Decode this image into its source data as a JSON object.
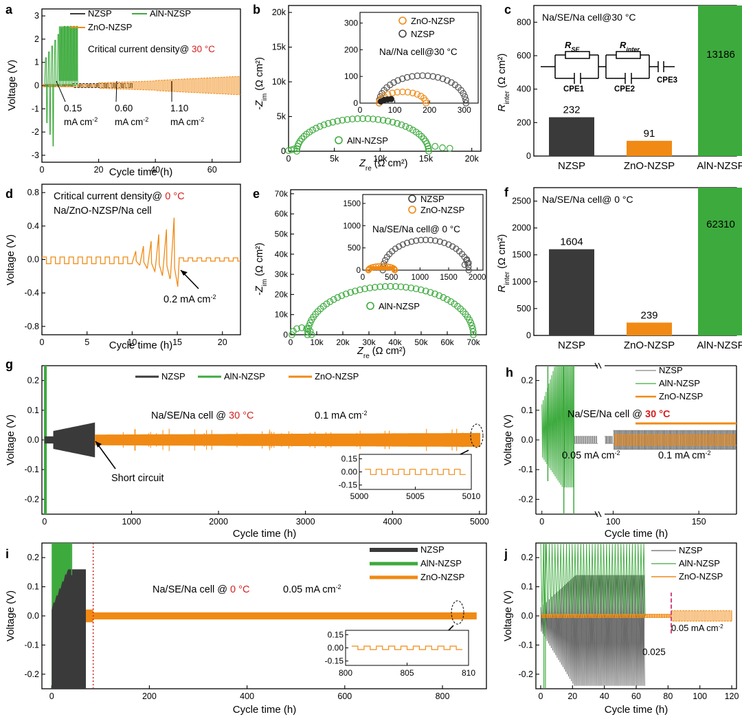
{
  "colors": {
    "nzsp": "#3a3a3a",
    "aln": "#3daa3d",
    "zno": "#f08a14",
    "red": "#d42020",
    "black": "#000000"
  },
  "chart_data": [
    {
      "id": "a",
      "type": "line",
      "panel_letter": "a",
      "xlabel": "Cycle time (h)",
      "ylabel": "Voltage (V)",
      "xlim": [
        0,
        70
      ],
      "ylim": [
        -3.3,
        3.3
      ],
      "xticks": [
        0,
        20,
        40,
        60
      ],
      "yticks": [
        -3,
        -2,
        -1,
        0,
        1,
        2,
        3
      ],
      "legend": [
        "NZSP",
        "AlN-NZSP",
        "ZnO-NZSP"
      ],
      "title_text": "Critical current density@ ",
      "title_temp": "30 °C",
      "annotations": [
        {
          "text": "0.15",
          "text2": "mA cm"
        },
        {
          "text": "0.60",
          "text2": "mA cm"
        },
        {
          "text": "1.10",
          "text2": "mA cm"
        }
      ],
      "series": [
        {
          "name": "AlN-NZSP",
          "description": "voltage spikes to ~2.5 V / -3.0 V within first 12 h"
        },
        {
          "name": "NZSP",
          "description": "near 0 V, short after ~30 h"
        },
        {
          "name": "ZnO-NZSP",
          "description": "steps up to ~0.4 V until 70 h"
        }
      ]
    },
    {
      "id": "b",
      "type": "scatter",
      "panel_letter": "b",
      "xlabel": "Z",
      "xlabel_sub": "re",
      "xlabel_unit": " (Ω cm²)",
      "ylabel": "-Z",
      "ylabel_sub": "im",
      "ylabel_unit": " (Ω cm²)",
      "xlim": [
        0,
        21000
      ],
      "ylim": [
        0,
        21000
      ],
      "xticks": [
        0,
        5000,
        10000,
        15000,
        20000
      ],
      "xtick_labels": [
        "0",
        "5k",
        "10k",
        "15k",
        "20k"
      ],
      "yticks": [
        0,
        5000,
        10000,
        15000,
        20000
      ],
      "ytick_labels": [
        "0",
        "5k",
        "10k",
        "15k",
        "20k"
      ],
      "series": [
        {
          "name": "AlN-NZSP",
          "semicircle_start": 900,
          "semicircle_end": 15300,
          "max_im": 4700,
          "tail_end": 17600
        }
      ],
      "label": "AlN-NZSP",
      "inset": {
        "xlim": [
          0,
          340
        ],
        "ylim": [
          0,
          340
        ],
        "xticks": [
          0,
          100,
          200,
          300
        ],
        "yticks": [
          0,
          100,
          200,
          300
        ],
        "title": "Na//Na cell@30 °C",
        "legend": [
          "ZnO-NZSP",
          "NZSP"
        ],
        "series": [
          {
            "name": "NZSP",
            "start": 55,
            "end": 305,
            "max_im": 103
          },
          {
            "name": "ZnO-NZSP",
            "start": 55,
            "end": 190,
            "max_im": 42
          }
        ]
      }
    },
    {
      "id": "c",
      "type": "bar",
      "panel_letter": "c",
      "title": "Na/SE/Na  cell@30 °C",
      "ylabel": "R",
      "ylabel_sub": "inter",
      "ylabel_unit": " (Ω cm²)",
      "ylim": [
        0,
        900
      ],
      "yticks": [
        0,
        200,
        400,
        600,
        800
      ],
      "categories": [
        "NZSP",
        "ZnO-NZSP",
        "AlN-NZSP"
      ],
      "values": [
        232,
        91,
        13186
      ],
      "value_labels": [
        "232",
        "91",
        "13186"
      ],
      "circuit": {
        "r1": "R",
        "r1_sub": "SE",
        "r2": "R",
        "r2_sub": "inter",
        "c1": "CPE1",
        "c2": "CPE2",
        "c3": "CPE3"
      }
    },
    {
      "id": "d",
      "type": "line",
      "panel_letter": "d",
      "xlabel": "Cycle time (h)",
      "ylabel": "Voltage (V)",
      "xlim": [
        0,
        22
      ],
      "ylim": [
        -0.9,
        0.9
      ],
      "xticks": [
        0,
        5,
        10,
        15,
        20
      ],
      "yticks": [
        -0.8,
        -0.4,
        0.0,
        0.4,
        0.8
      ],
      "ytick_labels": [
        "-0.8",
        "-0.4",
        "0.0",
        "0.4",
        "0.8"
      ],
      "title_text": "Critical current density@ ",
      "title_temp": "0 °C",
      "subtitle": "Na/ZnO-NZSP/Na cell",
      "annotation": "0.2 mA cm",
      "series": [
        {
          "name": "ZnO-NZSP",
          "description": "galvanostatic steps increasing to 0.5 V at 15 h"
        }
      ]
    },
    {
      "id": "e",
      "type": "scatter",
      "panel_letter": "e",
      "xlabel": "Z",
      "xlabel_sub": "re",
      "xlabel_unit": " (Ω cm²)",
      "ylabel": "-Z",
      "ylabel_sub": "im",
      "ylabel_unit": " (Ω cm²)",
      "xlim": [
        0,
        75000
      ],
      "ylim": [
        0,
        72000
      ],
      "xticks": [
        0,
        10000,
        20000,
        30000,
        40000,
        50000,
        60000,
        70000
      ],
      "xtick_labels": [
        "0",
        "10k",
        "20k",
        "30k",
        "40k",
        "50k",
        "60k",
        "70k"
      ],
      "yticks": [
        0,
        10000,
        20000,
        30000,
        40000,
        50000,
        60000,
        70000
      ],
      "ytick_labels": [
        "0",
        "10k",
        "20k",
        "30k",
        "40k",
        "50k",
        "60k",
        "70k"
      ],
      "series": [
        {
          "name": "AlN-NZSP",
          "semicircle_start": 6500,
          "semicircle_end": 70000,
          "max_im": 24000,
          "small_arc_end": 8000,
          "small_arc_max": 3500
        }
      ],
      "label": "AlN-NZSP",
      "inset": {
        "xlim": [
          0,
          2100
        ],
        "ylim": [
          0,
          1700
        ],
        "xticks": [
          0,
          500,
          1000,
          1500,
          2000
        ],
        "yticks": [
          0,
          500,
          1000,
          1500
        ],
        "title": "Na/SE/Na cell@ 0 °C",
        "legend": [
          "NZSP",
          "ZnO-NZSP"
        ],
        "series": [
          {
            "name": "NZSP",
            "start": 350,
            "end": 1850,
            "max_im": 680
          },
          {
            "name": "ZnO-NZSP",
            "start": 100,
            "end": 560,
            "max_im": 90
          }
        ]
      }
    },
    {
      "id": "f",
      "type": "bar",
      "panel_letter": "f",
      "title": "Na/SE/Na cell@ 0 °C",
      "ylabel": "R",
      "ylabel_sub": "inter",
      "ylabel_unit": " (Ω cm²)",
      "ylim": [
        0,
        2750
      ],
      "yticks": [
        0,
        500,
        1000,
        1500,
        2000,
        2500
      ],
      "categories": [
        "NZSP",
        "ZnO-NZSP",
        "AlN-NZSP"
      ],
      "values": [
        1604,
        239,
        62310
      ],
      "value_labels": [
        "1604",
        "239",
        "62310"
      ]
    },
    {
      "id": "g",
      "type": "line",
      "panel_letter": "g",
      "xlabel": "Cycle time (h)",
      "ylabel": "Voltage (V)",
      "xlim": [
        -30,
        5080
      ],
      "ylim": [
        -0.25,
        0.25
      ],
      "xticks": [
        0,
        1000,
        2000,
        3000,
        4000,
        5000
      ],
      "yticks": [
        -0.2,
        -0.1,
        0.0,
        0.1,
        0.2
      ],
      "ytick_labels": [
        "-0.2",
        "-0.1",
        "0.0",
        "0.1",
        "0.2"
      ],
      "legend": [
        "NZSP",
        "AlN-NZSP",
        "ZnO-NZSP"
      ],
      "title_text": "Na/SE/Na cell @ ",
      "title_temp": "30 °C",
      "current": "0.1 mA cm",
      "annotation": "Short circuit",
      "inset": {
        "xlim": [
          5000,
          5010
        ],
        "xticks": [
          5000,
          5005,
          5010
        ],
        "yticks": [
          -0.15,
          0.0,
          0.15
        ],
        "ytick_labels": [
          "-0.15",
          "0.00",
          "0.15"
        ]
      },
      "series": [
        {
          "name": "NZSP",
          "short_at": 580
        },
        {
          "name": "AlN-NZSP",
          "short_at": 20
        },
        {
          "name": "ZnO-NZSP",
          "end": 5010
        }
      ]
    },
    {
      "id": "h",
      "type": "line",
      "panel_letter": "h",
      "xlabel": "Cycle time (h)",
      "ylabel": "Voltage (V)",
      "xticks": [
        0,
        100,
        150
      ],
      "xtick_labels": [
        "0",
        "100",
        "150"
      ],
      "yticks": [
        -0.2,
        -0.1,
        0.0,
        0.1,
        0.2
      ],
      "ytick_labels": [
        "-0.2",
        "-0.1",
        "0.0",
        "0.1",
        "0.2"
      ],
      "ylim": [
        -0.25,
        0.25
      ],
      "legend": [
        "NZSP",
        "AlN-NZSP",
        "ZnO-NZSP"
      ],
      "title_text": "Na/SE/Na cell @ ",
      "title_temp": "30 °C",
      "annotations": [
        "0.05 mA cm",
        "0.1 mA cm"
      ]
    },
    {
      "id": "i",
      "type": "line",
      "panel_letter": "i",
      "xlabel": "Cycle time (h)",
      "ylabel": "Voltage (V)",
      "xlim": [
        -20,
        890
      ],
      "ylim": [
        -0.25,
        0.25
      ],
      "xticks": [
        0,
        200,
        400,
        600,
        800
      ],
      "yticks": [
        -0.2,
        -0.1,
        0.0,
        0.1,
        0.2
      ],
      "ytick_labels": [
        "-0.2",
        "-0.1",
        "0.0",
        "0.1",
        "0.2"
      ],
      "legend": [
        "NZSP",
        "AlN-NZSP",
        "ZnO-NZSP"
      ],
      "title_text": "Na/SE/Na cell @ ",
      "title_temp": "0 °C",
      "current": "0.05 mA cm",
      "inset": {
        "xlim": [
          800,
          810
        ],
        "xticks": [
          800,
          805,
          810
        ],
        "yticks": [
          -0.15,
          0.0,
          0.15
        ],
        "ytick_labels": [
          "-0.15",
          "0.00",
          "0.15"
        ]
      },
      "series": [
        {
          "name": "NZSP",
          "short_at": 70
        },
        {
          "name": "AlN-NZSP",
          "short_at": 20
        },
        {
          "name": "ZnO-NZSP",
          "end": 870
        }
      ]
    },
    {
      "id": "j",
      "type": "line",
      "panel_letter": "j",
      "xlabel": "Cycle time (h)",
      "ylabel": "Voltage (V)",
      "xlim": [
        -3,
        123
      ],
      "ylim": [
        -0.25,
        0.25
      ],
      "xticks": [
        0,
        20,
        40,
        60,
        80,
        100,
        120
      ],
      "yticks": [
        -0.2,
        -0.1,
        0.0,
        0.1,
        0.2
      ],
      "ytick_labels": [
        "-0.2",
        "-0.1",
        "0.0",
        "0.1",
        "0.2"
      ],
      "legend": [
        "NZSP",
        "AlN-NZSP",
        "ZnO-NZSP"
      ],
      "annotations": [
        "0.025",
        "0.05 mA cm"
      ],
      "series": [
        {
          "name": "NZSP",
          "end": 65
        },
        {
          "name": "AlN-NZSP",
          "end": 65
        },
        {
          "name": "ZnO-NZSP",
          "end": 120
        }
      ]
    }
  ]
}
